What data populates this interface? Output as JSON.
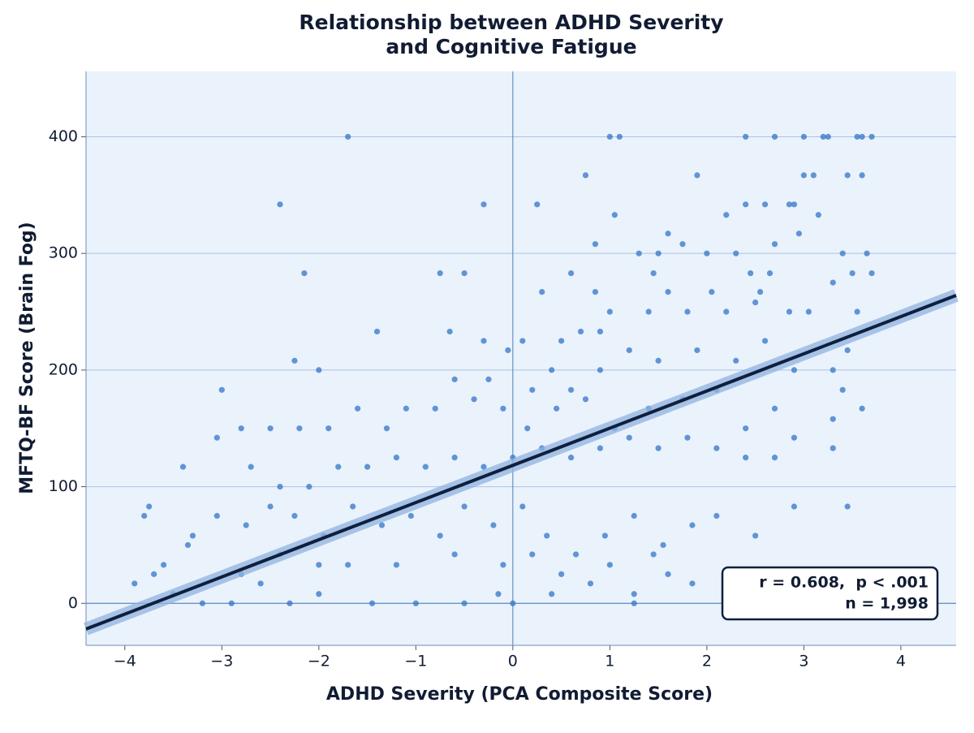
{
  "chart_data": {
    "type": "scatter",
    "title": [
      "Relationship between ADHD Severity",
      "and Cognitive Fatigue"
    ],
    "x_label": "ADHD Severity (PCA Composite Score)",
    "y_label": "MFTQ-BF Score (Brain Fog)",
    "xlim": [
      -4.4,
      4.57
    ],
    "ylim": [
      -36,
      456
    ],
    "xticks": [
      {
        "value": -4,
        "label": "−4"
      },
      {
        "value": -3,
        "label": "−3"
      },
      {
        "value": -2,
        "label": "−2"
      },
      {
        "value": -1,
        "label": "−1"
      },
      0,
      1,
      2,
      3,
      4
    ],
    "yticks": [
      0,
      100,
      200,
      300,
      400
    ],
    "grid": "y",
    "hline": 0,
    "vline": 0,
    "series": [
      {
        "color": "#3d7cc9",
        "x": [
          -1.7,
          -2.4,
          -2.15,
          -0.3,
          -0.5,
          -0.75,
          -1.4,
          -2.0,
          -2.25,
          -3.0,
          1.0,
          1.1,
          0.75,
          1.05,
          0.25,
          2.4,
          2.7,
          3.0,
          3.2,
          3.25,
          3.55,
          3.6,
          3.7,
          1.9,
          3.0,
          3.1,
          3.45,
          3.6,
          2.4,
          2.6,
          2.85,
          2.9,
          3.15,
          2.2,
          1.6,
          1.75,
          0.85,
          1.3,
          1.5,
          2.0,
          2.3,
          2.7,
          2.95,
          3.4,
          3.65,
          3.5,
          3.7,
          2.45,
          2.65,
          1.45,
          0.6,
          0.3,
          0.85,
          1.6,
          2.05,
          2.55,
          3.3,
          3.55,
          3.05,
          2.85,
          2.5,
          1.0,
          1.4,
          1.8,
          2.2,
          0.9,
          0.7,
          0.5,
          0.1,
          -0.05,
          -0.65,
          -0.3,
          -0.25,
          -0.6,
          0.2,
          0.4,
          0.6,
          0.9,
          1.2,
          1.5,
          1.9,
          2.3,
          2.6,
          2.9,
          3.3,
          3.45,
          3.6,
          3.4,
          2.7,
          2.4,
          2.1,
          1.75,
          1.4,
          1.05,
          0.75,
          0.45,
          0.15,
          -0.1,
          -0.4,
          -0.8,
          -1.1,
          -1.3,
          -1.6,
          -1.9,
          -2.2,
          -2.5,
          -2.8,
          -3.05,
          -3.4,
          -2.7,
          -2.4,
          -2.1,
          -1.8,
          -1.5,
          -1.2,
          -0.9,
          -0.6,
          -0.3,
          0.0,
          0.3,
          0.6,
          0.9,
          1.2,
          1.5,
          1.8,
          2.1,
          2.4,
          2.7,
          2.9,
          3.3,
          3.3,
          3.45,
          2.9,
          2.5,
          2.1,
          1.85,
          1.55,
          1.25,
          0.95,
          0.65,
          0.35,
          0.1,
          -0.2,
          -0.5,
          -0.75,
          -1.05,
          -1.35,
          -1.65,
          -1.95,
          -2.25,
          -2.5,
          -2.75,
          -3.05,
          -3.3,
          -3.6,
          -3.75,
          -3.8,
          -3.9,
          -3.7,
          -3.5,
          -3.2,
          -2.9,
          -2.6,
          -2.3,
          -2.0,
          -1.45,
          -1.0,
          -0.5,
          -0.15,
          0.4,
          0.8,
          1.25,
          1.6,
          1.85,
          1.25,
          -1.7,
          -1.2,
          -0.6,
          -0.1,
          0.2,
          0.5,
          1.0,
          1.45,
          -2.4,
          -2.0,
          -2.8,
          -3.35,
          0
        ],
        "y": [
          400,
          342,
          283,
          342,
          283,
          283,
          233,
          200,
          208,
          183,
          400,
          400,
          367,
          333,
          342,
          400,
          400,
          400,
          400,
          400,
          400,
          400,
          400,
          367,
          367,
          367,
          367,
          367,
          342,
          342,
          342,
          342,
          333,
          333,
          317,
          308,
          308,
          300,
          300,
          300,
          300,
          308,
          317,
          300,
          300,
          283,
          283,
          283,
          283,
          283,
          283,
          267,
          267,
          267,
          267,
          267,
          275,
          250,
          250,
          250,
          258,
          250,
          250,
          250,
          250,
          233,
          233,
          225,
          225,
          217,
          233,
          225,
          192,
          192,
          183,
          200,
          183,
          200,
          217,
          208,
          217,
          208,
          225,
          200,
          200,
          217,
          167,
          183,
          167,
          150,
          183,
          175,
          167,
          150,
          175,
          167,
          150,
          167,
          175,
          167,
          167,
          150,
          167,
          150,
          150,
          150,
          150,
          142,
          117,
          117,
          100,
          100,
          117,
          117,
          125,
          117,
          125,
          117,
          125,
          133,
          125,
          133,
          142,
          133,
          142,
          133,
          125,
          125,
          142,
          133,
          158,
          83,
          83,
          58,
          75,
          67,
          50,
          75,
          58,
          42,
          58,
          83,
          67,
          83,
          58,
          75,
          67,
          83,
          58,
          75,
          83,
          67,
          75,
          58,
          33,
          83,
          75,
          17,
          25,
          8,
          0,
          0,
          17,
          0,
          8,
          0,
          0,
          0,
          8,
          8,
          17,
          8,
          25,
          17,
          0,
          33,
          33,
          42,
          33,
          42,
          25,
          33,
          42,
          42,
          33,
          25,
          50,
          0
        ]
      }
    ],
    "fit": {
      "color": "#0f1f3d",
      "x": [
        -4.4,
        4.57
      ],
      "y": [
        -22,
        264
      ]
    },
    "annotation": [
      "r = 0.608,  p < .001",
      "n = 1,998"
    ]
  }
}
